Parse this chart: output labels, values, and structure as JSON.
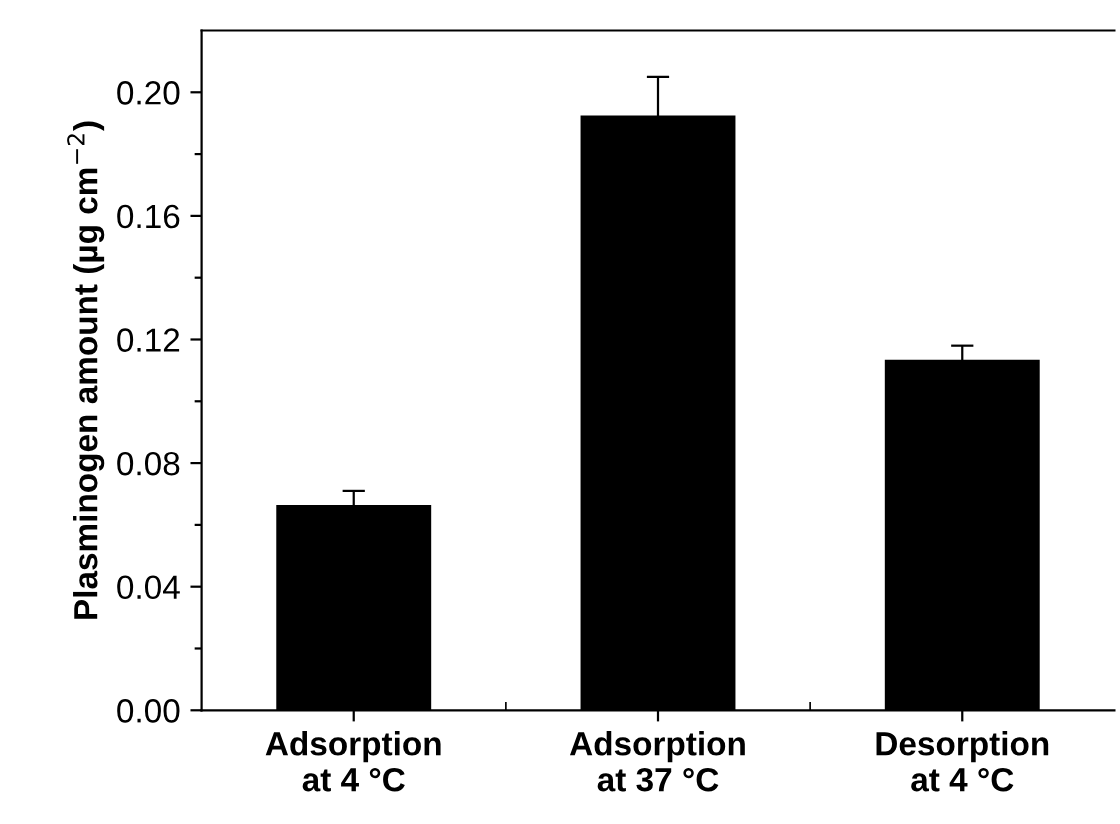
{
  "chart_data": {
    "type": "bar",
    "ylabel": "Plasminogen amount (µg cm$^{−2}$)",
    "categories": [
      "Adsorption\nat 4 °C",
      "Adsorption\nat 37 °C",
      "Desorption\nat 4 °C"
    ],
    "values": [
      0.066,
      0.192,
      0.113
    ],
    "errors": [
      0.005,
      0.013,
      0.005
    ],
    "color": "#000000",
    "ylim": [
      0,
      0.22
    ],
    "yticks": [
      {
        "value": 0.0,
        "label": "0.00"
      },
      {
        "value": 0.02,
        "label": null
      },
      {
        "value": 0.04,
        "label": "0.04"
      },
      {
        "value": 0.06,
        "label": null
      },
      {
        "value": 0.08,
        "label": "0.08"
      },
      {
        "value": 0.1,
        "label": null
      },
      {
        "value": 0.12,
        "label": "0.12"
      },
      {
        "value": 0.14,
        "label": null
      },
      {
        "value": 0.16,
        "label": "0.16"
      },
      {
        "value": 0.18,
        "label": null
      },
      {
        "value": 0.2,
        "label": "0.20"
      }
    ],
    "grid": false
  }
}
